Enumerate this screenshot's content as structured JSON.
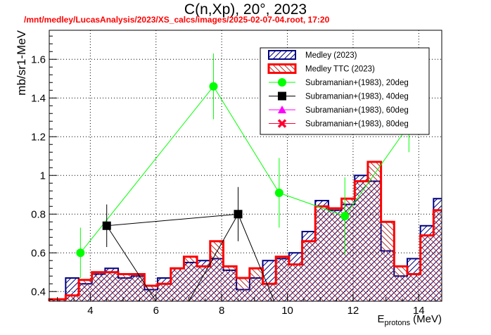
{
  "title": "C(n,Xp), 20°, 2023",
  "subtitle": "/mnt/medley/LucasAnalysis/2023/XS_calcs/images/2025-02-07-04.root,  17:20",
  "chart_data": {
    "type": "line",
    "xlabel_main": "E",
    "xlabel_sub": "protons",
    "xlabel_unit": "(MeV)",
    "ylabel": "mb/sr1-MeV",
    "xlim": [
      2.75,
      14.7
    ],
    "ylim": [
      0.35,
      1.75
    ],
    "grid": true,
    "legend_position": "top-right",
    "x_ticks": [
      4,
      6,
      8,
      10,
      12,
      14
    ],
    "y_ticks": [
      0.4,
      0.6,
      0.8,
      1,
      1.2,
      1.4,
      1.6
    ],
    "hist_edges": [
      2.75,
      3.25,
      3.65,
      4.05,
      4.45,
      4.85,
      5.25,
      5.65,
      6.05,
      6.45,
      6.85,
      7.25,
      7.65,
      8.05,
      8.45,
      8.85,
      9.25,
      9.65,
      10.05,
      10.45,
      10.85,
      11.25,
      11.65,
      12.05,
      12.45,
      12.85,
      13.25,
      13.65,
      14.05,
      14.45,
      14.7
    ],
    "series": [
      {
        "name": "Medley (2023)",
        "kind": "hist",
        "color": "#000080",
        "values": [
          0.36,
          0.47,
          0.44,
          0.49,
          0.52,
          0.47,
          0.48,
          0.41,
          0.47,
          0.52,
          0.55,
          0.56,
          0.57,
          0.51,
          0.41,
          0.47,
          0.56,
          0.57,
          0.6,
          0.71,
          0.87,
          0.82,
          0.85,
          1.0,
          0.97,
          0.61,
          0.48,
          0.57,
          0.74,
          0.88
        ]
      },
      {
        "name": "Medley TTC (2023)",
        "kind": "hist",
        "color": "#ff0000",
        "values": [
          0.36,
          0.38,
          0.46,
          0.5,
          0.5,
          0.49,
          0.49,
          0.43,
          0.44,
          0.52,
          0.58,
          0.53,
          0.66,
          0.53,
          0.47,
          0.52,
          0.44,
          0.58,
          0.54,
          0.66,
          0.84,
          0.83,
          0.88,
          0.97,
          1.07,
          0.76,
          0.53,
          0.49,
          0.69,
          0.82
        ]
      },
      {
        "name": "Subramanian+(1983), 20deg",
        "kind": "points",
        "color": "#00ff00",
        "marker": "circle",
        "x": [
          3.7,
          7.75,
          9.75,
          11.75,
          13.7
        ],
        "y": [
          0.6,
          1.46,
          0.91,
          0.79,
          1.26
        ],
        "err": [
          0.13,
          0.17,
          0.18,
          0.2,
          0.14
        ]
      },
      {
        "name": "Subramanian+(1983), 40deg",
        "kind": "points",
        "color": "#000000",
        "marker": "square",
        "x": [
          4.5,
          8.5
        ],
        "y": [
          0.74,
          0.8
        ],
        "err": [
          0.11,
          0.14
        ],
        "tails": [
          [
            4.5,
            0.74,
            6.0,
            0.35
          ],
          [
            8.5,
            0.8,
            7.0,
            0.35
          ],
          [
            8.5,
            0.8,
            9.6,
            0.35
          ]
        ]
      },
      {
        "name": "Subramanian+(1983), 60deg",
        "kind": "legend-only",
        "color": "#ff00ff",
        "marker": "triangle"
      },
      {
        "name": "Subramanian+(1983), 80deg",
        "kind": "legend-only",
        "color": "#ff0033",
        "marker": "cross"
      }
    ]
  }
}
